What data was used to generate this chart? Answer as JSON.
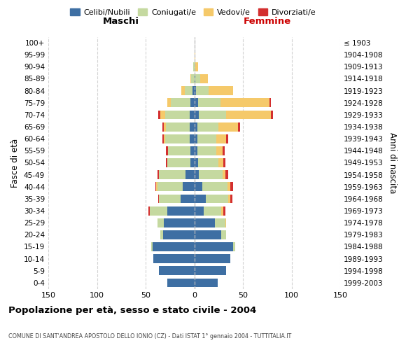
{
  "age_groups": [
    "0-4",
    "5-9",
    "10-14",
    "15-19",
    "20-24",
    "25-29",
    "30-34",
    "35-39",
    "40-44",
    "45-49",
    "50-54",
    "55-59",
    "60-64",
    "65-69",
    "70-74",
    "75-79",
    "80-84",
    "85-89",
    "90-94",
    "95-99",
    "100+"
  ],
  "birth_years": [
    "1999-2003",
    "1994-1998",
    "1989-1993",
    "1984-1988",
    "1979-1983",
    "1974-1978",
    "1969-1973",
    "1964-1968",
    "1959-1963",
    "1954-1958",
    "1949-1953",
    "1944-1948",
    "1939-1943",
    "1934-1938",
    "1929-1933",
    "1924-1928",
    "1919-1923",
    "1914-1918",
    "1909-1913",
    "1904-1908",
    "≤ 1903"
  ],
  "colors": {
    "celibe": "#3e6fa3",
    "coniugato": "#c5d9a0",
    "vedovo": "#f5c96a",
    "divorziato": "#d32f2f"
  },
  "males": {
    "celibe": [
      28,
      36,
      42,
      43,
      32,
      31,
      28,
      14,
      12,
      9,
      4,
      4,
      5,
      5,
      5,
      4,
      2,
      0,
      0,
      0,
      0
    ],
    "coniugato": [
      0,
      0,
      0,
      1,
      3,
      7,
      18,
      22,
      26,
      27,
      24,
      23,
      25,
      24,
      25,
      20,
      8,
      3,
      1,
      0,
      0
    ],
    "vedovo": [
      0,
      0,
      0,
      0,
      0,
      0,
      0,
      0,
      1,
      0,
      0,
      0,
      1,
      2,
      5,
      4,
      3,
      1,
      0,
      0,
      0
    ],
    "divorziato": [
      0,
      0,
      0,
      0,
      0,
      0,
      1,
      1,
      1,
      2,
      1,
      2,
      2,
      2,
      2,
      0,
      0,
      0,
      0,
      0,
      0
    ]
  },
  "females": {
    "nubile": [
      24,
      33,
      37,
      40,
      28,
      21,
      10,
      12,
      8,
      5,
      4,
      3,
      3,
      3,
      5,
      4,
      2,
      1,
      0,
      0,
      0
    ],
    "coniugata": [
      0,
      0,
      0,
      2,
      5,
      11,
      18,
      23,
      26,
      24,
      21,
      20,
      20,
      22,
      28,
      23,
      13,
      5,
      1,
      0,
      0
    ],
    "vedova": [
      0,
      0,
      0,
      0,
      0,
      1,
      2,
      2,
      3,
      3,
      5,
      6,
      10,
      20,
      46,
      50,
      25,
      8,
      3,
      1,
      0
    ],
    "divorziata": [
      0,
      0,
      0,
      0,
      0,
      0,
      2,
      2,
      3,
      3,
      2,
      2,
      2,
      2,
      2,
      2,
      0,
      0,
      0,
      0,
      0
    ]
  },
  "xlim": 150,
  "title": "Popolazione per età, sesso e stato civile - 2004",
  "subtitle": "COMUNE DI SANT'ANDREA APOSTOLO DELLO IONIO (CZ) - Dati ISTAT 1° gennaio 2004 - TUTTITALIA.IT",
  "xlabel_left": "Maschi",
  "xlabel_right": "Femmine",
  "ylabel_left": "Fasce di età",
  "ylabel_right": "Anni di nascita",
  "legend_labels": [
    "Celibi/Nubili",
    "Coniugati/e",
    "Vedovi/e",
    "Divorziati/e"
  ]
}
